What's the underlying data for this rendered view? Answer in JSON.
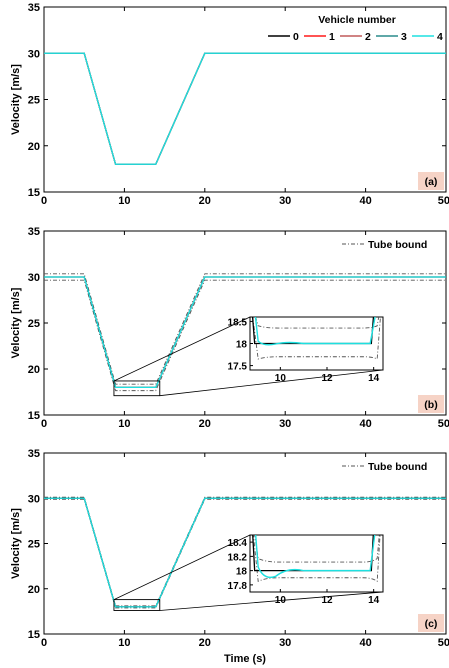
{
  "figure": {
    "xlabel": "Time (s)",
    "legend_title": "Vehicle number",
    "tube_legend_label": "Tube bound"
  },
  "chart_data": [
    {
      "type": "line",
      "panel_label": "(a)",
      "ylabel": "Velocity [m/s]",
      "xlim": [
        0,
        50
      ],
      "ylim": [
        15,
        35
      ],
      "xticks": [
        0,
        10,
        20,
        30,
        40,
        50
      ],
      "yticks": [
        15,
        20,
        25,
        30,
        35
      ],
      "grid": false,
      "legend": "top-right",
      "series": [
        {
          "name": "0",
          "color": "#000000",
          "x": [
            0,
            5,
            8.9,
            13.9,
            20,
            50
          ],
          "y": [
            30,
            30,
            18,
            18,
            30,
            30
          ]
        },
        {
          "name": "1",
          "color": "#ff1a1a",
          "x": [
            0,
            5,
            8.9,
            13.9,
            20,
            50
          ],
          "y": [
            30,
            30,
            18,
            18,
            30,
            30
          ]
        },
        {
          "name": "2",
          "color": "#c05a5a",
          "x": [
            0,
            5,
            8.9,
            13.9,
            20,
            50
          ],
          "y": [
            30,
            30,
            18,
            18,
            30,
            30
          ]
        },
        {
          "name": "3",
          "color": "#2a8c8c",
          "x": [
            0,
            5,
            8.9,
            13.9,
            20,
            50
          ],
          "y": [
            30,
            30,
            18,
            18,
            30,
            30
          ]
        },
        {
          "name": "4",
          "color": "#1ee0e0",
          "x": [
            0,
            5,
            8.9,
            13.9,
            20,
            50
          ],
          "y": [
            30,
            30,
            18,
            18,
            30,
            30
          ]
        }
      ]
    },
    {
      "type": "line",
      "panel_label": "(b)",
      "ylabel": "Velocity [m/s]",
      "xlim": [
        0,
        50
      ],
      "ylim": [
        15,
        35
      ],
      "xticks": [
        0,
        10,
        20,
        30,
        40,
        50
      ],
      "yticks": [
        15,
        20,
        25,
        30,
        35
      ],
      "grid": false,
      "legend": "top-right",
      "tube_bound": {
        "upper_offset": 0.35,
        "lower_offset": -0.35
      },
      "inset": {
        "xlim": [
          8.7,
          14.4
        ],
        "ylim": [
          17.4,
          18.6
        ],
        "xticks": [
          10,
          12,
          14
        ],
        "yticks": [
          17.5,
          18,
          18.5
        ],
        "tube_upper": 18.35,
        "tube_lower": 17.7,
        "zoom_box": {
          "x": [
            8.7,
            14.4
          ],
          "y": [
            17.1,
            18.7
          ]
        }
      },
      "series": [
        {
          "name": "0",
          "color": "#000000",
          "x": [
            0,
            5,
            8.9,
            13.9,
            20,
            50
          ],
          "y": [
            30,
            30,
            18,
            18,
            30,
            30
          ]
        },
        {
          "name": "4",
          "color": "#1ee0e0",
          "x": [
            0,
            5,
            8.9,
            13.9,
            20,
            50
          ],
          "y": [
            30,
            30,
            18,
            18,
            30,
            30
          ]
        }
      ]
    },
    {
      "type": "line",
      "panel_label": "(c)",
      "ylabel": "Velocity [m/s]",
      "xlim": [
        0,
        50
      ],
      "ylim": [
        15,
        35
      ],
      "xticks": [
        0,
        10,
        20,
        30,
        40,
        50
      ],
      "yticks": [
        15,
        20,
        25,
        30,
        35
      ],
      "grid": false,
      "legend": "top-right",
      "tube_bound": {
        "upper_offset": 0.12,
        "lower_offset": -0.12
      },
      "inset": {
        "xlim": [
          8.7,
          14.4
        ],
        "ylim": [
          17.7,
          18.5
        ],
        "xticks": [
          10,
          12,
          14
        ],
        "yticks": [
          17.8,
          18,
          18.2,
          18.4
        ],
        "tube_upper": 18.12,
        "tube_lower": 17.9,
        "zoom_box": {
          "x": [
            8.7,
            14.4
          ],
          "y": [
            17.6,
            18.8
          ]
        }
      },
      "series": [
        {
          "name": "0",
          "color": "#000000",
          "x": [
            0,
            5,
            8.9,
            13.9,
            20,
            50
          ],
          "y": [
            30,
            30,
            18,
            18,
            30,
            30
          ]
        },
        {
          "name": "4",
          "color": "#1ee0e0",
          "x": [
            0,
            5,
            8.9,
            13.9,
            20,
            50
          ],
          "y": [
            30,
            30,
            18,
            18,
            30,
            30
          ]
        }
      ]
    }
  ]
}
